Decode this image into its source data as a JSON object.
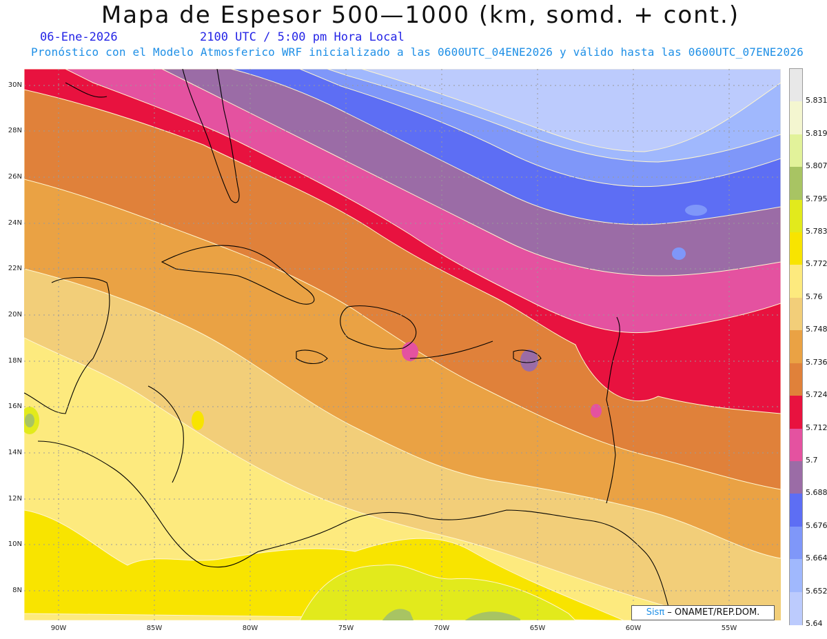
{
  "header": {
    "title": "Mapa de Espesor 500—1000 (km, somd. + cont.)",
    "date": "06-Ene-2026",
    "time": "2100 UTC / 5:00 pm Hora Local",
    "info": "Pronóstico con el Modelo Atmosferico WRF inicializado a las 0600UTC_04ENE2026 y válido hasta las  0600UTC_07ENE2026"
  },
  "map": {
    "lat_labels": [
      "30N",
      "28N",
      "26N",
      "24N",
      "22N",
      "20N",
      "18N",
      "16N",
      "14N",
      "12N",
      "10N",
      "8N"
    ],
    "lon_labels": [
      "90W",
      "85W",
      "80W",
      "75W",
      "70W",
      "65W",
      "60W",
      "55W"
    ],
    "credit_brand": "Sisπ",
    "credit_text": " – ONAMET/REP.DOM."
  },
  "legend": {
    "labels": [
      "5.831",
      "5.819",
      "5.807",
      "5.795",
      "5.783",
      "5.772",
      "5.76",
      "5.748",
      "5.736",
      "5.724",
      "5.712",
      "5.7",
      "5.688",
      "5.676",
      "5.664",
      "5.652",
      "5.64"
    ],
    "colors": [
      "#e8e8e8",
      "#f4f6d0",
      "#e2f29a",
      "#a8c463",
      "#e2ea1c",
      "#f8e400",
      "#fdea7e",
      "#f2ce79",
      "#eaa244",
      "#e0813a",
      "#e8123f",
      "#e452a0",
      "#9b6ca6",
      "#5d6ef4",
      "#7f97f9",
      "#a0b8fd",
      "#bccbfd"
    ]
  }
}
